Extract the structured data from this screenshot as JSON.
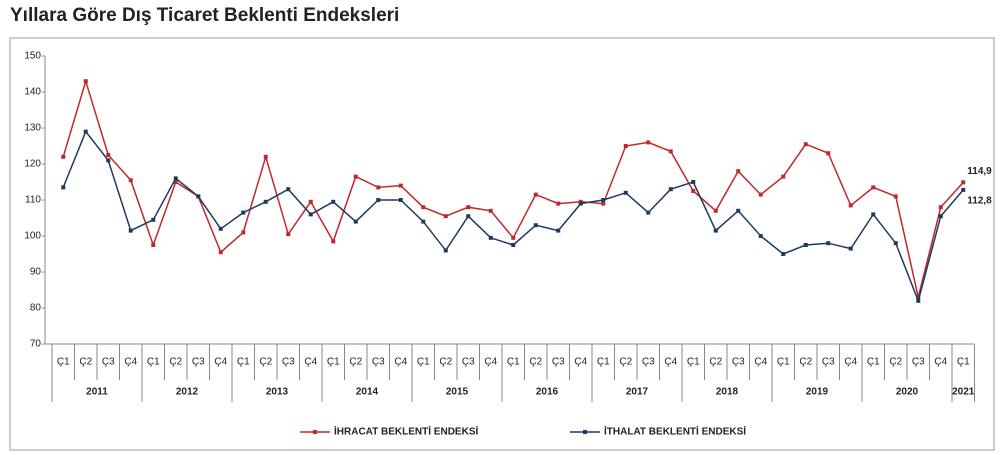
{
  "chart_data": {
    "type": "line",
    "title": "Yıllara Göre Dış Ticaret Beklenti Endeksleri",
    "categories": [
      "Ç1",
      "Ç2",
      "Ç3",
      "Ç4",
      "Ç1",
      "Ç2",
      "Ç3",
      "Ç4",
      "Ç1",
      "Ç2",
      "Ç3",
      "Ç4",
      "Ç1",
      "Ç2",
      "Ç3",
      "Ç4",
      "Ç1",
      "Ç2",
      "Ç3",
      "Ç4",
      "Ç1",
      "Ç2",
      "Ç3",
      "Ç4",
      "Ç1",
      "Ç2",
      "Ç3",
      "Ç4",
      "Ç1",
      "Ç2",
      "Ç3",
      "Ç4",
      "Ç1",
      "Ç2",
      "Ç3",
      "Ç4",
      "Ç1",
      "Ç2",
      "Ç3",
      "Ç4",
      "Ç1"
    ],
    "years": [
      "2011",
      "2012",
      "2013",
      "2014",
      "2015",
      "2016",
      "2017",
      "2018",
      "2019",
      "2020",
      "2021"
    ],
    "series": [
      {
        "name": "İHRACAT BEKLENTİ ENDEKSİ",
        "color": "#c0282d",
        "values": [
          122,
          143,
          122.5,
          115.5,
          97.5,
          115,
          111,
          95.5,
          101,
          122,
          100.5,
          109.5,
          98.5,
          116.5,
          113.5,
          114,
          108,
          105.5,
          108,
          107,
          99.5,
          111.5,
          109,
          109.5,
          109,
          125,
          126,
          123.5,
          112.5,
          107,
          118,
          111.5,
          116.5,
          125.5,
          123,
          108.5,
          113.5,
          111,
          83,
          108,
          114.9
        ],
        "value_labels": [
          null,
          null,
          null,
          null,
          null,
          null,
          null,
          null,
          null,
          null,
          null,
          null,
          null,
          null,
          null,
          null,
          null,
          null,
          null,
          null,
          null,
          null,
          null,
          null,
          null,
          null,
          null,
          null,
          null,
          null,
          null,
          null,
          null,
          null,
          null,
          null,
          null,
          null,
          null,
          null,
          "114,9"
        ]
      },
      {
        "name": "İTHALAT BEKLENTİ ENDEKSİ",
        "color": "#1f3a5f",
        "values": [
          113.5,
          129,
          121,
          101.5,
          104.5,
          116,
          111,
          102,
          106.5,
          109.5,
          113,
          106,
          109.5,
          104,
          110,
          110,
          104,
          96,
          105.5,
          99.5,
          97.5,
          103,
          101.5,
          109,
          110,
          112,
          106.5,
          113,
          115,
          101.5,
          107,
          100,
          95,
          97.5,
          98,
          96.5,
          106,
          98,
          82,
          105.5,
          112.8
        ],
        "value_labels": [
          null,
          null,
          null,
          null,
          null,
          null,
          null,
          null,
          null,
          null,
          null,
          null,
          null,
          null,
          null,
          null,
          null,
          null,
          null,
          null,
          null,
          null,
          null,
          null,
          null,
          null,
          null,
          null,
          null,
          null,
          null,
          null,
          null,
          null,
          null,
          null,
          null,
          null,
          null,
          null,
          "112,8"
        ]
      }
    ],
    "ylim": [
      70,
      150
    ],
    "yticks": [
      70,
      80,
      90,
      100,
      110,
      120,
      130,
      140,
      150
    ],
    "grid": false
  }
}
